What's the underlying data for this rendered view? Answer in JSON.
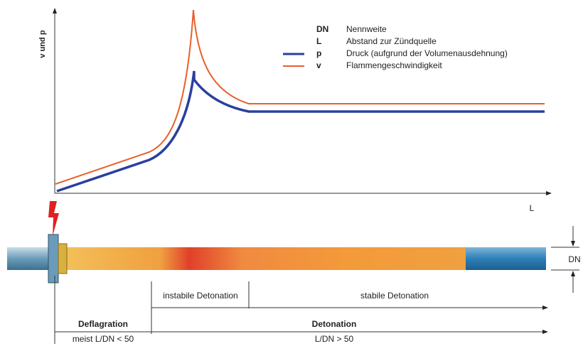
{
  "graph": {
    "y_axis_label": "v und p",
    "x_axis_label": "L",
    "legend": [
      {
        "symbol": "DN",
        "text": "Nennweite"
      },
      {
        "symbol": "L",
        "text": "Abstand zur Zündquelle"
      },
      {
        "symbol": "p",
        "text": "Druck (aufgrund der Volumenausdehnung)"
      },
      {
        "symbol": "v",
        "text": "Flammengeschwindigkeit"
      }
    ]
  },
  "pipe": {
    "diameter_label": "DN"
  },
  "zones": {
    "upper": [
      "instabile Detonation",
      "stabile Detonation"
    ],
    "lower": [
      {
        "name": "Deflagration",
        "condition": "meist L/DN < 50"
      },
      {
        "name": "Detonation",
        "condition": "L/DN > 50"
      }
    ]
  }
}
